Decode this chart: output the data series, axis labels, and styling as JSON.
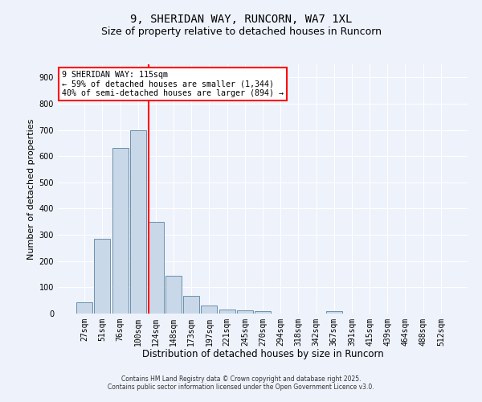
{
  "title_line1": "9, SHERIDAN WAY, RUNCORN, WA7 1XL",
  "title_line2": "Size of property relative to detached houses in Runcorn",
  "xlabel": "Distribution of detached houses by size in Runcorn",
  "ylabel": "Number of detached properties",
  "bar_labels": [
    "27sqm",
    "51sqm",
    "76sqm",
    "100sqm",
    "124sqm",
    "148sqm",
    "173sqm",
    "197sqm",
    "221sqm",
    "245sqm",
    "270sqm",
    "294sqm",
    "318sqm",
    "342sqm",
    "367sqm",
    "391sqm",
    "415sqm",
    "439sqm",
    "464sqm",
    "488sqm",
    "512sqm"
  ],
  "bar_values": [
    42,
    285,
    632,
    700,
    350,
    145,
    67,
    32,
    15,
    11,
    10,
    0,
    0,
    0,
    8,
    0,
    0,
    0,
    0,
    0,
    0
  ],
  "bar_color": "#c8d8e8",
  "bar_edge_color": "#5a82a0",
  "vline_color": "red",
  "vline_x": 3.58,
  "annotation_text": "9 SHERIDAN WAY: 115sqm\n← 59% of detached houses are smaller (1,344)\n40% of semi-detached houses are larger (894) →",
  "annotation_box_color": "white",
  "annotation_box_edge_color": "red",
  "ylim": [
    0,
    950
  ],
  "yticks": [
    0,
    100,
    200,
    300,
    400,
    500,
    600,
    700,
    800,
    900
  ],
  "background_color": "#eef2fb",
  "grid_color": "white",
  "title1_fontsize": 10,
  "title2_fontsize": 9,
  "footer_line1": "Contains HM Land Registry data © Crown copyright and database right 2025.",
  "footer_line2": "Contains public sector information licensed under the Open Government Licence v3.0."
}
